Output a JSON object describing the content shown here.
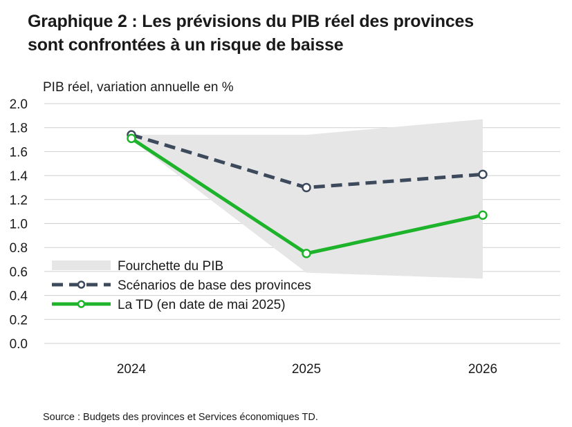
{
  "title": {
    "line1": "Graphique 2 : Les prévisions du PIB réel des provinces",
    "line2": "sont confrontées à un risque de baisse"
  },
  "source": "Source : Budgets des provinces et Services économiques TD.",
  "colors": {
    "range_fill": "#e6e6e6",
    "baseline_line": "#3d4a5c",
    "td_line": "#1db32a",
    "grid": "#cfcfcf",
    "text": "#1a1a1a"
  },
  "chart_data": {
    "type": "line",
    "ylabel": "PIB réel, variation annuelle en %",
    "xlabel": "",
    "ylim": [
      0,
      2
    ],
    "yticks": [
      "0.0",
      "0.2",
      "0.4",
      "0.6",
      "0.8",
      "1.0",
      "1.2",
      "1.4",
      "1.6",
      "1.8",
      "2.0"
    ],
    "categories": [
      "2024",
      "2025",
      "2026"
    ],
    "grid": true,
    "legend_position": "bottom-left",
    "range": {
      "name": "Fourchette du PIB",
      "low": [
        1.7,
        0.59,
        0.54
      ],
      "high": [
        1.74,
        1.74,
        1.87
      ]
    },
    "series": [
      {
        "name": "Scénarios de base des provinces",
        "style": "dashed",
        "values": [
          1.74,
          1.3,
          1.41
        ]
      },
      {
        "name": "La TD (en date de mai 2025)",
        "style": "solid",
        "values": [
          1.71,
          0.75,
          1.07
        ]
      }
    ]
  }
}
